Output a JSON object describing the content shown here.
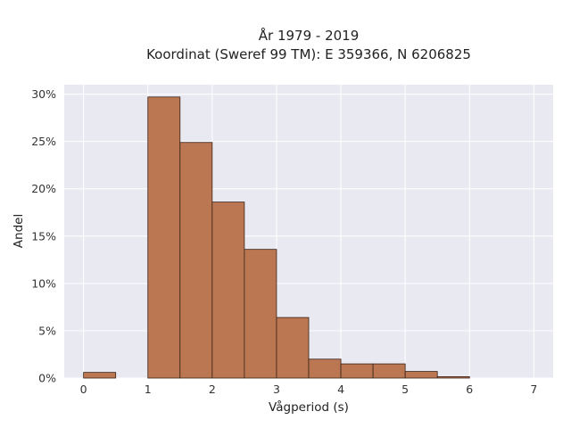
{
  "chart_data": {
    "type": "bar",
    "title_lines": [
      "År 1979 - 2019",
      "Koordinat (Sweref 99 TM): E 359366, N 6206825"
    ],
    "xlabel": "Vågperiod (s)",
    "ylabel": "Andel",
    "xlim": [
      -0.3,
      7.3
    ],
    "ylim": [
      0,
      31
    ],
    "x_ticks": [
      0,
      1,
      2,
      3,
      4,
      5,
      6,
      7
    ],
    "x_tick_labels": [
      "0",
      "1",
      "2",
      "3",
      "4",
      "5",
      "6",
      "7"
    ],
    "y_ticks": [
      0,
      5,
      10,
      15,
      20,
      25,
      30
    ],
    "y_tick_labels": [
      "0%",
      "5%",
      "10%",
      "15%",
      "20%",
      "25%",
      "30%"
    ],
    "grid": true,
    "bin_width": 0.5,
    "bins": [
      {
        "start": 0.0,
        "value": 0.6
      },
      {
        "start": 0.5,
        "value": 0.0
      },
      {
        "start": 1.0,
        "value": 29.7
      },
      {
        "start": 1.5,
        "value": 24.9
      },
      {
        "start": 2.0,
        "value": 18.6
      },
      {
        "start": 2.5,
        "value": 13.6
      },
      {
        "start": 3.0,
        "value": 6.4
      },
      {
        "start": 3.5,
        "value": 2.0
      },
      {
        "start": 4.0,
        "value": 1.5
      },
      {
        "start": 4.5,
        "value": 1.5
      },
      {
        "start": 5.0,
        "value": 0.7
      },
      {
        "start": 5.5,
        "value": 0.15
      }
    ],
    "colors": {
      "bar": "#bb7752",
      "bar_edge": "#3a2218",
      "plot_bg": "#e9e9f1",
      "grid": "#ffffff"
    }
  }
}
